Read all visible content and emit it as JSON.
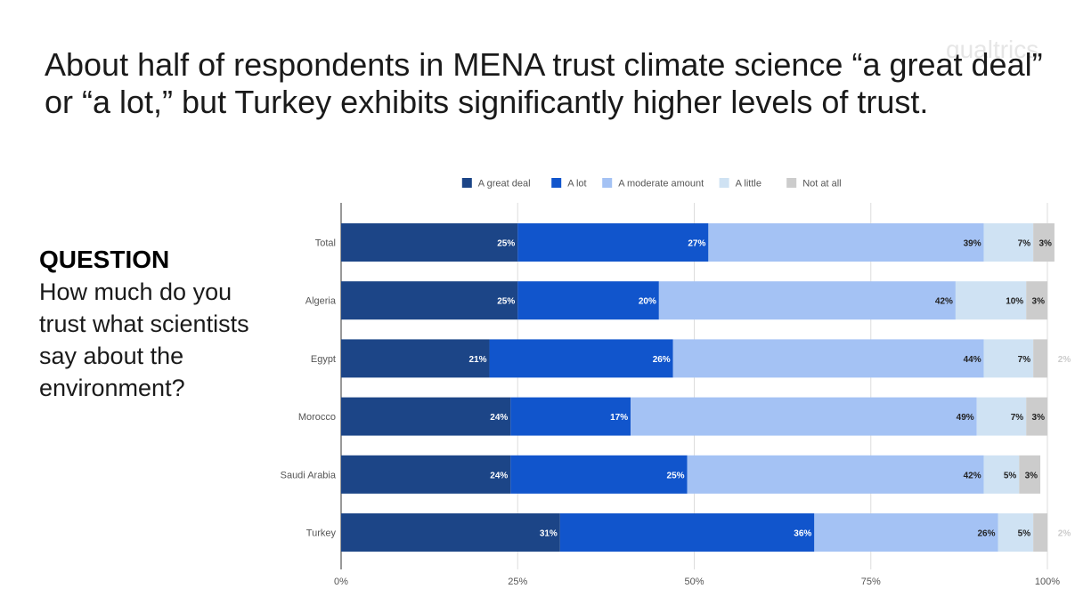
{
  "logo_text": "qualtrics",
  "headline": "About half of respondents in MENA trust climate science “a great deal” or “a lot,” but Turkey exhibits significantly higher levels of trust.",
  "question": {
    "label": "QUESTION",
    "text": "How much do you trust what scientists say about the environment?"
  },
  "chart_data": {
    "type": "bar",
    "orientation": "horizontal",
    "stacked": true,
    "categories": [
      "Total",
      "Algeria",
      "Egypt",
      "Morocco",
      "Saudi Arabia",
      "Turkey"
    ],
    "series": [
      {
        "name": "A great deal",
        "color": "#1c4587",
        "label_color": "#ffffff",
        "values": [
          25,
          25,
          21,
          24,
          24,
          31
        ]
      },
      {
        "name": "A lot",
        "color": "#1155cc",
        "label_color": "#ffffff",
        "values": [
          27,
          20,
          26,
          17,
          25,
          36
        ]
      },
      {
        "name": "A moderate amount",
        "color": "#a4c2f4",
        "label_color": "#222222",
        "values": [
          39,
          42,
          44,
          49,
          42,
          26
        ]
      },
      {
        "name": "A little",
        "color": "#cfe2f3",
        "label_color": "#222222",
        "values": [
          7,
          10,
          7,
          7,
          5,
          5
        ]
      },
      {
        "name": "Not at all",
        "color": "#cccccc",
        "label_color": "#222222",
        "values": [
          3,
          3,
          2,
          3,
          3,
          2
        ]
      }
    ],
    "xlim": [
      0,
      100
    ],
    "xticks": [
      "0%",
      "25%",
      "50%",
      "75%",
      "100%"
    ],
    "legend_position": "top",
    "grid": true
  }
}
